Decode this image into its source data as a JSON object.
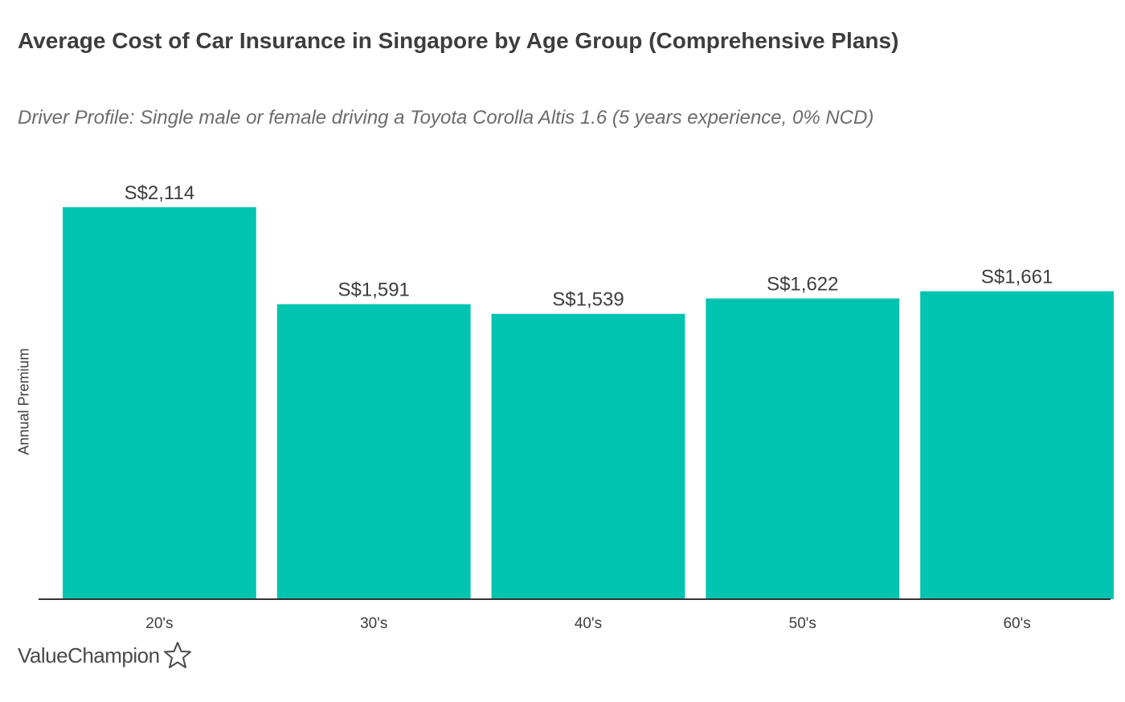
{
  "chart_data": {
    "type": "bar",
    "title": "Average Cost of Car Insurance in Singapore by Age Group (Comprehensive Plans)",
    "subtitle": "Driver Profile: Single male or female driving a Toyota Corolla Altis 1.6 (5 years experience, 0% NCD)",
    "xlabel": "",
    "ylabel": "Annual Premium",
    "categories": [
      "20's",
      "30's",
      "40's",
      "50's",
      "60's"
    ],
    "values": [
      2114,
      1591,
      1539,
      1622,
      1661
    ],
    "data_labels": [
      "S$2,114",
      "S$1,591",
      "S$1,539",
      "S$1,622",
      "S$1,661"
    ],
    "ylim": [
      0,
      2114
    ],
    "grid": false,
    "legend": "none",
    "bar_color": "#00c4b0"
  },
  "brand": {
    "name": "ValueChampion"
  },
  "colors": {
    "bar": "#00c4b0",
    "axis": "#333333",
    "title": "#3d3d3d",
    "subtitle": "#6b6b6b"
  }
}
